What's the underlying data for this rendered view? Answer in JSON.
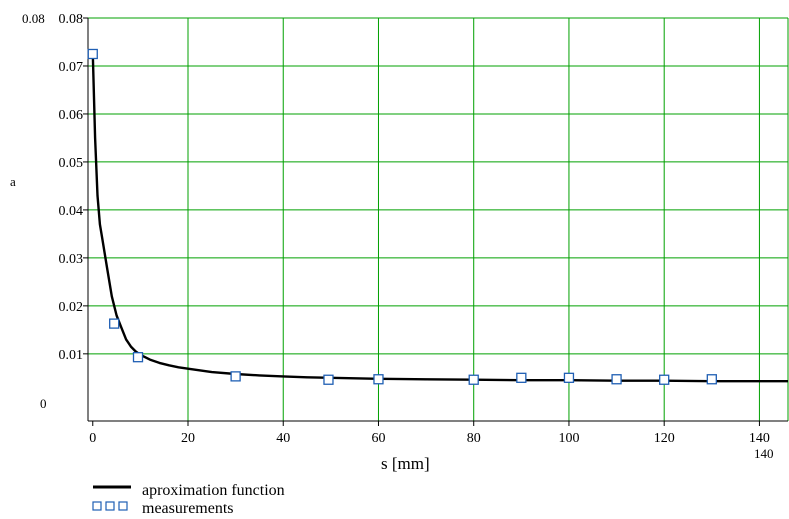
{
  "chart_data": {
    "type": "line",
    "title": "",
    "xlabel": "s [mm]",
    "ylabel": "a",
    "xlim": [
      -1,
      146
    ],
    "ylim": [
      -0.004,
      0.08
    ],
    "x_ticks": [
      0,
      20,
      40,
      60,
      80,
      100,
      120,
      140
    ],
    "y_ticks": [
      0.01,
      0.02,
      0.03,
      0.04,
      0.05,
      0.06,
      0.07,
      0.08
    ],
    "x_corner_labels": {
      "min": "0",
      "max": "140"
    },
    "y_corner_labels": {
      "min": "0",
      "max": "0.08"
    },
    "grid": true,
    "grid_color": "#00a000",
    "series": [
      {
        "name": "aproximation function",
        "kind": "line",
        "color": "#000000",
        "x": [
          0,
          0.5,
          1,
          1.5,
          2,
          3,
          4,
          5,
          6,
          7,
          8,
          9,
          10,
          12,
          14,
          16,
          18,
          20,
          25,
          30,
          35,
          40,
          45,
          50,
          60,
          70,
          80,
          90,
          100,
          110,
          120,
          130,
          140,
          146
        ],
        "y": [
          0.0725,
          0.055,
          0.043,
          0.037,
          0.034,
          0.028,
          0.022,
          0.018,
          0.0155,
          0.013,
          0.0115,
          0.0105,
          0.0098,
          0.0088,
          0.0081,
          0.0076,
          0.0072,
          0.0069,
          0.0062,
          0.0058,
          0.0055,
          0.0053,
          0.0051,
          0.005,
          0.0048,
          0.0047,
          0.0046,
          0.0045,
          0.0045,
          0.0044,
          0.0044,
          0.0043,
          0.0043,
          0.0043
        ]
      },
      {
        "name": "measurements",
        "kind": "scatter",
        "marker": "open-square",
        "color": "#1f5fb4",
        "x": [
          0,
          4.5,
          9.5,
          30,
          49.5,
          60,
          80,
          90,
          100,
          110,
          120,
          130
        ],
        "y": [
          0.0725,
          0.0163,
          0.0093,
          0.0053,
          0.0046,
          0.0047,
          0.0046,
          0.005,
          0.005,
          0.0047,
          0.0046,
          0.0047
        ]
      }
    ],
    "legend": {
      "placement": "bottom-left",
      "entries": [
        "aproximation function",
        "measurements"
      ]
    }
  }
}
